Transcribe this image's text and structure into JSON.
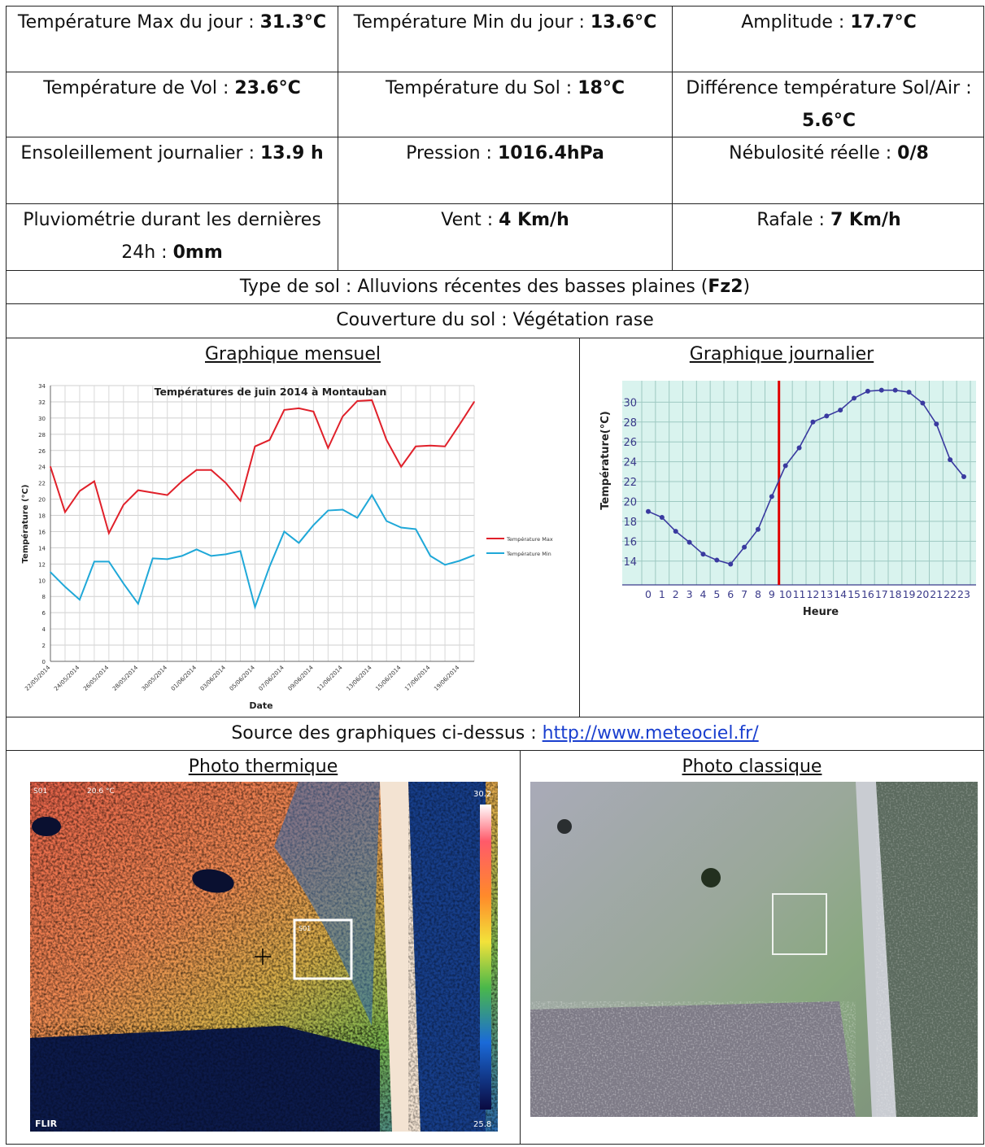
{
  "stats": [
    [
      {
        "label": "Température Max du jour :",
        "value": "31.3°C"
      },
      {
        "label": "Température Min du jour :",
        "value": "13.6°C"
      },
      {
        "label": "Amplitude :",
        "value": "17.7°C"
      }
    ],
    [
      {
        "label": "Température de Vol :",
        "value": "23.6°C"
      },
      {
        "label": "Température du Sol :",
        "value": "18°C"
      },
      {
        "label": "Différence température Sol/Air :",
        "value": "5.6°C"
      }
    ],
    [
      {
        "label": "Ensoleillement journalier :",
        "value": "13.9 h"
      },
      {
        "label": "Pression :",
        "value": "1016.4hPa"
      },
      {
        "label": "Nébulosité réelle :",
        "value": "0/8"
      }
    ],
    [
      {
        "label": "Pluviométrie durant les dernières 24h :",
        "value": "0mm"
      },
      {
        "label": "Vent :",
        "value": "4 Km/h"
      },
      {
        "label": "Rafale :",
        "value": "7 Km/h"
      }
    ]
  ],
  "soil": {
    "type_label": "Type de sol :",
    "type_text": "Alluvions récentes des basses plaines",
    "type_code": "Fz2",
    "cover_label": "Couverture du sol :",
    "cover_text": "Végétation rase"
  },
  "sections": {
    "monthly": "Graphique mensuel",
    "daily": "Graphique journalier",
    "source_label": "Source des graphiques ci-dessus :",
    "source_url": "http://www.meteociel.fr/",
    "thermal": "Photo thermique",
    "classic": "Photo classique"
  },
  "thermal_overlay": {
    "top_left": "S01",
    "top_mid": "20.6 °C",
    "scale_max": "30.2",
    "scale_min": "25.8",
    "brand": "FLIR",
    "spot_label": "S01"
  },
  "chart_data": [
    {
      "type": "line",
      "title": "Températures de juin 2014 à Montauban",
      "xlabel": "Date",
      "ylabel": "Température (°C)",
      "ylim": [
        0,
        34
      ],
      "yticks": [
        0,
        2,
        4,
        6,
        8,
        10,
        12,
        14,
        16,
        18,
        20,
        22,
        24,
        26,
        28,
        30,
        32,
        34
      ],
      "x_tick_labels": [
        "22/05/2014",
        "24/05/2014",
        "26/05/2014",
        "28/05/2014",
        "30/05/2014",
        "01/06/2014",
        "03/06/2014",
        "05/06/2014",
        "07/06/2014",
        "09/06/2014",
        "11/06/2014",
        "13/06/2014",
        "15/06/2014",
        "17/06/2014",
        "19/06/2014"
      ],
      "series": [
        {
          "name": "Température Max",
          "color": "#e0202a",
          "values": [
            24,
            18.4,
            21,
            22.2,
            15.8,
            19.3,
            21.1,
            20.8,
            20.5,
            22.2,
            23.6,
            23.6,
            22,
            19.8,
            26.5,
            27.3,
            31,
            31.2,
            30.8,
            26.3,
            30.2,
            32.1,
            32.2,
            27.3,
            24,
            26.5,
            26.6,
            26.5,
            29.2,
            32
          ]
        },
        {
          "name": "Température Min",
          "color": "#1fa8d8",
          "values": [
            11,
            9.2,
            7.6,
            12.3,
            12.3,
            9.6,
            7.1,
            12.7,
            12.6,
            13,
            13.8,
            13,
            13.2,
            13.6,
            6.7,
            11.7,
            16,
            14.6,
            16.8,
            18.6,
            18.7,
            17.7,
            20.5,
            17.3,
            16.5,
            16.3,
            13,
            11.9,
            12.4,
            13.1
          ]
        }
      ],
      "legend": "right"
    },
    {
      "type": "line",
      "xlabel": "Heure",
      "ylabel": "Température(°C)",
      "ylim": [
        12,
        32
      ],
      "yticks": [
        14,
        16,
        18,
        20,
        22,
        24,
        26,
        28,
        30
      ],
      "categories": [
        "0",
        "1",
        "2",
        "3",
        "4",
        "5",
        "6",
        "7",
        "8",
        "9",
        "10",
        "11",
        "12",
        "13",
        "14",
        "15",
        "16",
        "17",
        "18",
        "19",
        "20",
        "21",
        "22",
        "23"
      ],
      "series": [
        {
          "name": "",
          "color": "#3a3aa0",
          "values": [
            19,
            18.4,
            17,
            15.9,
            14.7,
            14.1,
            13.7,
            15.4,
            17.2,
            20.5,
            23.6,
            25.4,
            28,
            28.6,
            29.2,
            30.4,
            31.1,
            31.2,
            31.2,
            31,
            29.9,
            27.8,
            24.2,
            22.5
          ]
        }
      ],
      "marker_hour": 10,
      "marker_color": "#e00000",
      "background": "#d9f3ee"
    }
  ]
}
